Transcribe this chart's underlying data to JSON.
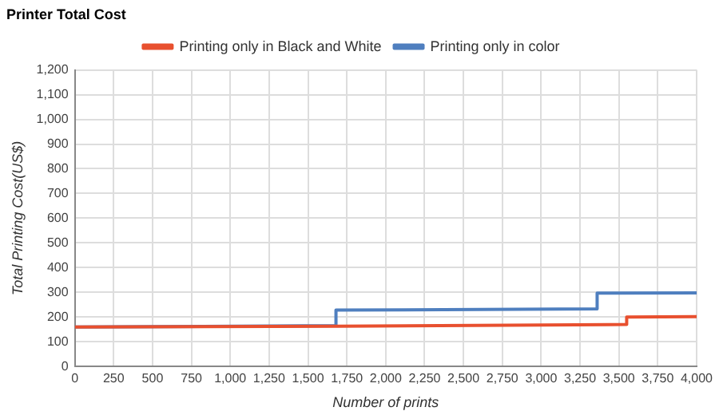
{
  "chart_data": {
    "type": "line",
    "title": "Printer Total Cost",
    "xlabel": "Number of prints",
    "ylabel": "Total Printing Cost(US$)",
    "series": [
      {
        "name": "Printing only in Black and White",
        "color": "#e8502f",
        "x": [
          0,
          1700,
          3550,
          3550,
          4000
        ],
        "values": [
          160,
          163,
          170,
          200,
          202
        ]
      },
      {
        "name": "Printing only in color",
        "color": "#4f7fbf",
        "x": [
          0,
          1680,
          1680,
          3360,
          3360,
          4000
        ],
        "values": [
          160,
          165,
          228,
          233,
          297,
          298
        ]
      }
    ],
    "xlim": [
      0,
      4000
    ],
    "xticks": [
      {
        "value": 0,
        "label": "0"
      },
      {
        "value": 250,
        "label": "250"
      },
      {
        "value": 500,
        "label": "500"
      },
      {
        "value": 750,
        "label": "750"
      },
      {
        "value": 1000,
        "label": "1,000"
      },
      {
        "value": 1250,
        "label": "1,250"
      },
      {
        "value": 1500,
        "label": "1,500"
      },
      {
        "value": 1750,
        "label": "1,750"
      },
      {
        "value": 2000,
        "label": "2,000"
      },
      {
        "value": 2250,
        "label": "2,250"
      },
      {
        "value": 2500,
        "label": "2,500"
      },
      {
        "value": 2750,
        "label": "2,750"
      },
      {
        "value": 3000,
        "label": "3,000"
      },
      {
        "value": 3250,
        "label": "3,250"
      },
      {
        "value": 3500,
        "label": "3,500"
      },
      {
        "value": 3750,
        "label": "3,750"
      },
      {
        "value": 4000,
        "label": "4,000"
      }
    ],
    "ylim": [
      0,
      1200
    ],
    "yticks": [
      0,
      100,
      200,
      300,
      400,
      500,
      600,
      700,
      800,
      900,
      {
        "value": 1000,
        "label": "1,000"
      },
      {
        "value": 1100,
        "label": "1,100"
      },
      {
        "value": 1200,
        "label": "1,200"
      }
    ],
    "grid": true,
    "legend": "top",
    "marker": "none",
    "line_style": "solid"
  }
}
